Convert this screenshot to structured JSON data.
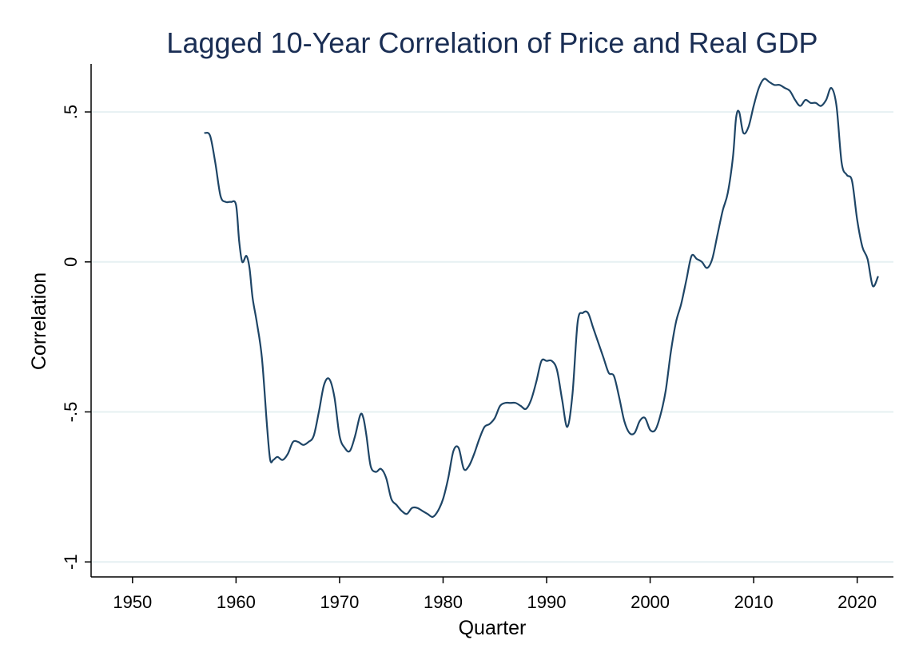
{
  "chart_data": {
    "type": "line",
    "title": "Lagged 10-Year Correlation of Price and Real GDP",
    "xlabel": "Quarter",
    "ylabel": "Correlation",
    "xlim": [
      1946,
      2023.5
    ],
    "ylim": [
      -1.05,
      0.66
    ],
    "x_ticks": [
      1950,
      1960,
      1970,
      1980,
      1990,
      2000,
      2010,
      2020
    ],
    "x_tick_labels": [
      "1950",
      "1960",
      "1970",
      "1980",
      "1990",
      "2000",
      "2010",
      "2020"
    ],
    "y_ticks": [
      -1,
      -0.5,
      0,
      0.5
    ],
    "y_tick_labels": [
      "-1",
      "-.5",
      "0",
      ".5"
    ],
    "grid": "horizontal",
    "legend": "none",
    "colors": {
      "line": "#1e4566",
      "grid": "#e6f0f2",
      "title": "#1a2e54",
      "background": "#ffffff"
    },
    "series": [
      {
        "x": [
          1957.0,
          1957.5,
          1958.0,
          1958.5,
          1959.0,
          1959.5,
          1960.0,
          1960.3,
          1960.6,
          1961.0,
          1961.3,
          1961.6,
          1962.0,
          1962.5,
          1963.0,
          1963.3,
          1963.6,
          1964.0,
          1964.5,
          1965.0,
          1965.5,
          1966.0,
          1966.5,
          1967.0,
          1967.5,
          1968.0,
          1968.5,
          1969.0,
          1969.5,
          1970.0,
          1970.5,
          1971.0,
          1971.5,
          1972.0,
          1972.3,
          1972.6,
          1973.0,
          1973.5,
          1974.0,
          1974.5,
          1975.0,
          1975.5,
          1976.0,
          1976.5,
          1977.0,
          1977.5,
          1978.0,
          1978.5,
          1979.0,
          1979.5,
          1980.0,
          1980.5,
          1981.0,
          1981.5,
          1982.0,
          1982.5,
          1983.0,
          1983.5,
          1984.0,
          1984.5,
          1985.0,
          1985.5,
          1986.0,
          1986.5,
          1987.0,
          1987.5,
          1988.0,
          1988.5,
          1989.0,
          1989.5,
          1990.0,
          1990.5,
          1991.0,
          1991.5,
          1992.0,
          1992.5,
          1993.0,
          1993.5,
          1994.0,
          1994.5,
          1995.0,
          1995.5,
          1996.0,
          1996.5,
          1997.0,
          1997.5,
          1998.0,
          1998.5,
          1999.0,
          1999.5,
          2000.0,
          2000.5,
          2001.0,
          2001.5,
          2002.0,
          2002.5,
          2003.0,
          2003.5,
          2004.0,
          2004.5,
          2005.0,
          2005.5,
          2006.0,
          2006.5,
          2007.0,
          2007.5,
          2008.0,
          2008.3,
          2008.6,
          2009.0,
          2009.5,
          2010.0,
          2010.5,
          2011.0,
          2011.5,
          2012.0,
          2012.5,
          2013.0,
          2013.5,
          2014.0,
          2014.5,
          2015.0,
          2015.5,
          2016.0,
          2016.5,
          2017.0,
          2017.5,
          2018.0,
          2018.5,
          2019.0,
          2019.5,
          2020.0,
          2020.5,
          2021.0,
          2021.5,
          2022.0
        ],
        "y": [
          0.43,
          0.42,
          0.33,
          0.22,
          0.2,
          0.2,
          0.19,
          0.07,
          0.0,
          0.02,
          -0.02,
          -0.12,
          -0.2,
          -0.32,
          -0.55,
          -0.66,
          -0.66,
          -0.65,
          -0.66,
          -0.64,
          -0.6,
          -0.6,
          -0.61,
          -0.6,
          -0.58,
          -0.5,
          -0.41,
          -0.39,
          -0.45,
          -0.58,
          -0.62,
          -0.63,
          -0.58,
          -0.51,
          -0.52,
          -0.58,
          -0.68,
          -0.7,
          -0.69,
          -0.72,
          -0.79,
          -0.81,
          -0.83,
          -0.84,
          -0.82,
          -0.82,
          -0.83,
          -0.84,
          -0.85,
          -0.83,
          -0.79,
          -0.72,
          -0.63,
          -0.62,
          -0.69,
          -0.68,
          -0.64,
          -0.59,
          -0.55,
          -0.54,
          -0.52,
          -0.48,
          -0.47,
          -0.47,
          -0.47,
          -0.48,
          -0.49,
          -0.46,
          -0.4,
          -0.33,
          -0.33,
          -0.33,
          -0.36,
          -0.46,
          -0.55,
          -0.44,
          -0.2,
          -0.17,
          -0.17,
          -0.22,
          -0.27,
          -0.32,
          -0.37,
          -0.38,
          -0.45,
          -0.53,
          -0.57,
          -0.57,
          -0.53,
          -0.52,
          -0.56,
          -0.56,
          -0.51,
          -0.43,
          -0.3,
          -0.2,
          -0.14,
          -0.06,
          0.02,
          0.01,
          0.0,
          -0.02,
          0.01,
          0.09,
          0.17,
          0.23,
          0.35,
          0.48,
          0.5,
          0.43,
          0.45,
          0.52,
          0.58,
          0.61,
          0.6,
          0.59,
          0.59,
          0.58,
          0.57,
          0.54,
          0.52,
          0.54,
          0.53,
          0.53,
          0.52,
          0.54,
          0.58,
          0.52,
          0.33,
          0.29,
          0.27,
          0.14,
          0.05,
          0.01,
          -0.08,
          -0.05
        ]
      }
    ]
  }
}
